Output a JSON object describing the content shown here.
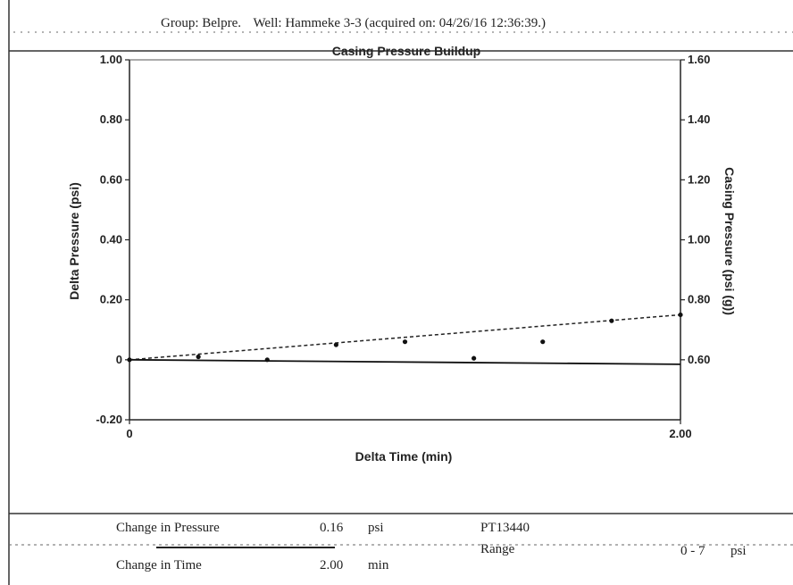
{
  "header": {
    "group": "Group: Belpre.",
    "well": "Well: Hammeke 3-3 (acquired on: 04/26/16 12:36:39.)"
  },
  "chart_data": {
    "type": "line",
    "title": "Casing Pressure Buildup",
    "xlabel": "Delta Time (min)",
    "ylabel": "Delta Pressure (psi)",
    "y2label": "Casing Pressure (psi (g))",
    "xlim": [
      0,
      2.0
    ],
    "ylim": [
      -0.2,
      1.0
    ],
    "y2lim": [
      0.4,
      1.6
    ],
    "x_ticks": [
      "0",
      "2.00"
    ],
    "y_ticks": [
      "-0.20",
      "0",
      "0.20",
      "0.40",
      "0.60",
      "0.80",
      "1.00"
    ],
    "y2_ticks": [
      "0.80",
      "1.00",
      "1.20",
      "1.40",
      "1.60"
    ],
    "y2_tick_values": [
      0.6,
      0.8,
      1.0,
      1.2,
      1.4,
      1.6
    ],
    "y2_tick_labels_full": [
      "0.60",
      "0.80",
      "1.00",
      "1.20",
      "1.40",
      "1.60"
    ],
    "grid": false,
    "series": [
      {
        "style": "dashed-markers",
        "x": [
          0.0,
          0.25,
          0.5,
          0.75,
          1.0,
          1.25,
          1.5,
          1.75,
          2.0
        ],
        "y": [
          0.0,
          0.01,
          0.0,
          0.05,
          0.06,
          0.005,
          0.06,
          0.13,
          0.15
        ]
      },
      {
        "style": "solid",
        "x": [
          0.0,
          2.0
        ],
        "y": [
          0.0,
          -0.015
        ]
      }
    ]
  },
  "footer": {
    "change_pressure_label": "Change in Pressure",
    "change_pressure_value": "0.16",
    "change_pressure_unit": "psi",
    "change_time_label": "Change in Time",
    "change_time_value": "2.00",
    "change_time_unit": "min",
    "gauge_id": "PT13440",
    "range_label": "Range",
    "range_value": "0 - 7",
    "range_unit": "psi"
  },
  "colors": {
    "ink": "#111111",
    "background": "#ffffff"
  }
}
